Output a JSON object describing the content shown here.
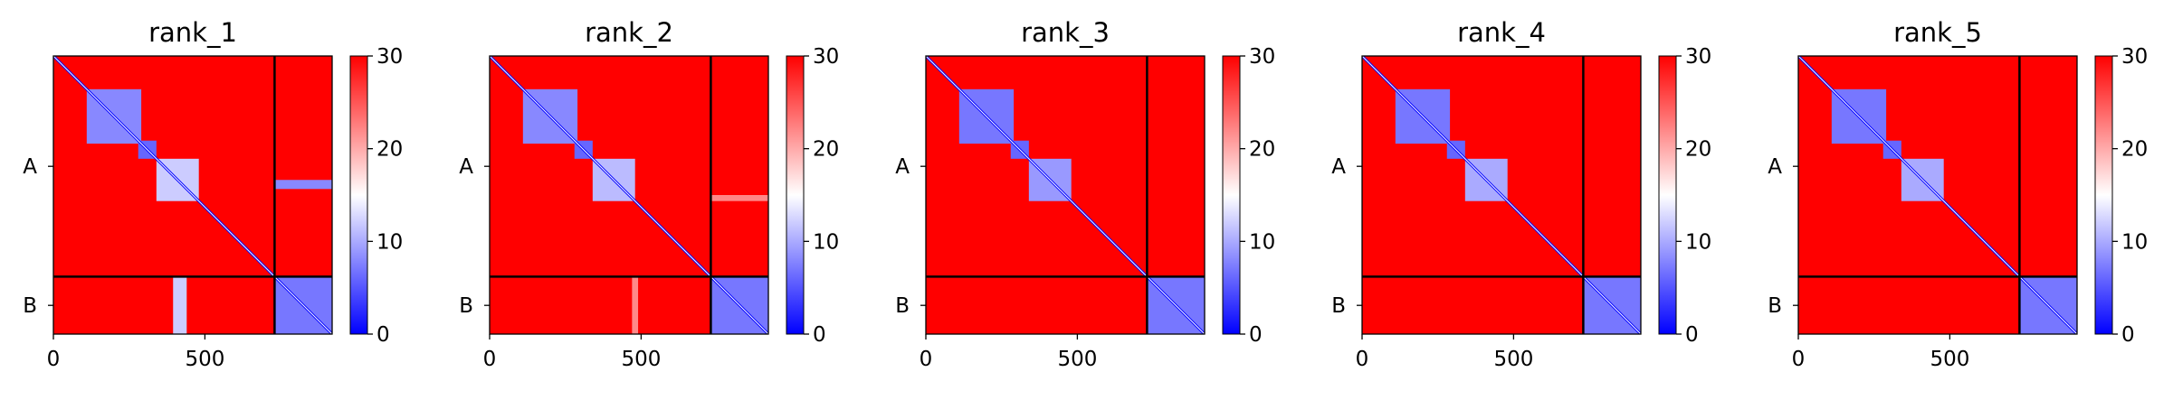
{
  "chart_data": [
    {
      "type": "heatmap",
      "title": "rank_1",
      "chains": [
        "A",
        "B"
      ],
      "chain_lengths": [
        730,
        190
      ],
      "xticks": [
        0,
        500
      ],
      "colorbar": {
        "min": 0,
        "max": 30,
        "ticks": [
          0,
          10,
          20,
          30
        ],
        "colormap": [
          "#0000ff",
          "#ffffff",
          "#ff0000"
        ]
      },
      "blue_blocks": [
        {
          "r": [
            110,
            290
          ],
          "c": [
            110,
            290
          ],
          "v": 8
        },
        {
          "r": [
            280,
            340
          ],
          "c": [
            280,
            340
          ],
          "v": 6
        },
        {
          "r": [
            340,
            480
          ],
          "c": [
            340,
            480
          ],
          "v": 12
        },
        {
          "r": [
            730,
            920
          ],
          "c": [
            730,
            920
          ],
          "v": 7
        }
      ],
      "stripes": [
        {
          "r": [
            410,
            440
          ],
          "c": [
            730,
            920
          ],
          "v": 8
        },
        {
          "r": [
            730,
            920
          ],
          "c": [
            395,
            440
          ],
          "v": 12
        }
      ]
    },
    {
      "type": "heatmap",
      "title": "rank_2",
      "chains": [
        "A",
        "B"
      ],
      "chain_lengths": [
        730,
        190
      ],
      "xticks": [
        0,
        500
      ],
      "colorbar": {
        "min": 0,
        "max": 30,
        "ticks": [
          0,
          10,
          20,
          30
        ],
        "colormap": [
          "#0000ff",
          "#ffffff",
          "#ff0000"
        ]
      },
      "blue_blocks": [
        {
          "r": [
            110,
            290
          ],
          "c": [
            110,
            290
          ],
          "v": 8
        },
        {
          "r": [
            280,
            340
          ],
          "c": [
            280,
            340
          ],
          "v": 6
        },
        {
          "r": [
            340,
            480
          ],
          "c": [
            340,
            480
          ],
          "v": 11
        },
        {
          "r": [
            730,
            920
          ],
          "c": [
            730,
            920
          ],
          "v": 7
        }
      ],
      "stripes": [
        {
          "r": [
            460,
            480
          ],
          "c": [
            730,
            920
          ],
          "v": 22
        },
        {
          "r": [
            730,
            920
          ],
          "c": [
            470,
            490
          ],
          "v": 22
        }
      ]
    },
    {
      "type": "heatmap",
      "title": "rank_3",
      "chains": [
        "A",
        "B"
      ],
      "chain_lengths": [
        730,
        190
      ],
      "xticks": [
        0,
        500
      ],
      "colorbar": {
        "min": 0,
        "max": 30,
        "ticks": [
          0,
          10,
          20,
          30
        ],
        "colormap": [
          "#0000ff",
          "#ffffff",
          "#ff0000"
        ]
      },
      "blue_blocks": [
        {
          "r": [
            110,
            290
          ],
          "c": [
            110,
            290
          ],
          "v": 7
        },
        {
          "r": [
            280,
            340
          ],
          "c": [
            280,
            340
          ],
          "v": 6
        },
        {
          "r": [
            340,
            480
          ],
          "c": [
            340,
            480
          ],
          "v": 9
        },
        {
          "r": [
            730,
            920
          ],
          "c": [
            730,
            920
          ],
          "v": 7
        }
      ],
      "stripes": []
    },
    {
      "type": "heatmap",
      "title": "rank_4",
      "chains": [
        "A",
        "B"
      ],
      "chain_lengths": [
        730,
        190
      ],
      "xticks": [
        0,
        500
      ],
      "colorbar": {
        "min": 0,
        "max": 30,
        "ticks": [
          0,
          10,
          20,
          30
        ],
        "colormap": [
          "#0000ff",
          "#ffffff",
          "#ff0000"
        ]
      },
      "blue_blocks": [
        {
          "r": [
            110,
            290
          ],
          "c": [
            110,
            290
          ],
          "v": 7
        },
        {
          "r": [
            280,
            340
          ],
          "c": [
            280,
            340
          ],
          "v": 6
        },
        {
          "r": [
            340,
            480
          ],
          "c": [
            340,
            480
          ],
          "v": 10
        },
        {
          "r": [
            730,
            920
          ],
          "c": [
            730,
            920
          ],
          "v": 7
        }
      ],
      "stripes": []
    },
    {
      "type": "heatmap",
      "title": "rank_5",
      "chains": [
        "A",
        "B"
      ],
      "chain_lengths": [
        730,
        190
      ],
      "xticks": [
        0,
        500
      ],
      "colorbar": {
        "min": 0,
        "max": 30,
        "ticks": [
          0,
          10,
          20,
          30
        ],
        "colormap": [
          "#0000ff",
          "#ffffff",
          "#ff0000"
        ]
      },
      "blue_blocks": [
        {
          "r": [
            110,
            290
          ],
          "c": [
            110,
            290
          ],
          "v": 7
        },
        {
          "r": [
            280,
            340
          ],
          "c": [
            280,
            340
          ],
          "v": 6
        },
        {
          "r": [
            340,
            480
          ],
          "c": [
            340,
            480
          ],
          "v": 10
        },
        {
          "r": [
            730,
            920
          ],
          "c": [
            730,
            920
          ],
          "v": 7
        }
      ],
      "stripes": []
    }
  ]
}
